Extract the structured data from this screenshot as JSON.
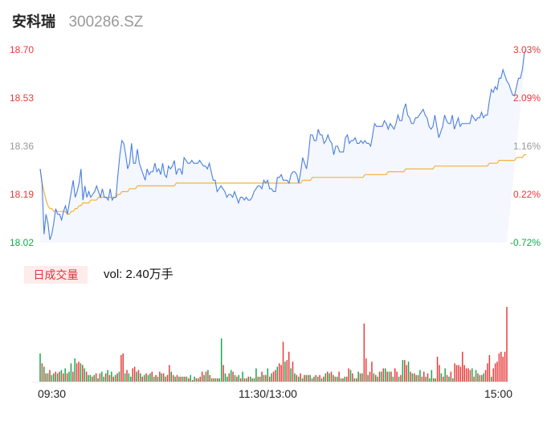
{
  "header": {
    "name": "安科瑞",
    "code": "300286.SZ"
  },
  "colors": {
    "up": "#e83a3a",
    "down": "#16a84a",
    "flat": "#999999",
    "price_line": "#4a7fe0",
    "avg_line": "#f2b33d",
    "fill": "#f4f7fd"
  },
  "chart_data": [
    {
      "type": "line",
      "title": "",
      "x_ticks": [
        "09:30",
        "11:30/13:00",
        "15:00"
      ],
      "y_left_ticks": [
        "18.70",
        "18.53",
        "18.36",
        "18.19",
        "18.02"
      ],
      "y_right_ticks": [
        "3.03%",
        "2.09%",
        "1.16%",
        "0.22%",
        "-0.72%"
      ],
      "ylim": [
        18.02,
        18.7
      ],
      "prev_close": 18.15,
      "n_points": 241,
      "series": [
        {
          "role": "price",
          "values": [
            18.28,
            18.23,
            18.05,
            18.12,
            18.09,
            18.03,
            18.05,
            18.09,
            18.14,
            18.12,
            18.12,
            18.1,
            18.13,
            18.15,
            18.12,
            18.16,
            18.2,
            18.24,
            18.18,
            18.2,
            18.23,
            18.28,
            18.17,
            18.22,
            18.18,
            18.2,
            18.18,
            18.19,
            18.2,
            18.22,
            18.2,
            18.18,
            18.21,
            18.18,
            18.18,
            18.17,
            18.21,
            18.17,
            18.18,
            18.18,
            18.26,
            18.33,
            18.38,
            18.37,
            18.33,
            18.28,
            18.3,
            18.37,
            18.3,
            18.3,
            18.35,
            18.3,
            18.28,
            18.26,
            18.24,
            18.28,
            18.26,
            18.27,
            18.27,
            18.3,
            18.27,
            18.28,
            18.26,
            18.3,
            18.26,
            18.25,
            18.29,
            18.28,
            18.29,
            18.31,
            18.26,
            18.28,
            18.28,
            18.26,
            18.32,
            18.31,
            18.3,
            18.3,
            18.31,
            18.3,
            18.3,
            18.3,
            18.31,
            18.3,
            18.29,
            18.29,
            18.28,
            18.3,
            18.27,
            18.24,
            18.24,
            18.2,
            18.21,
            18.22,
            18.21,
            18.2,
            18.18,
            18.19,
            18.19,
            18.18,
            18.2,
            18.18,
            18.16,
            18.18,
            18.18,
            18.17,
            18.18,
            18.17,
            18.17,
            18.18,
            18.2,
            18.21,
            18.22,
            18.22,
            18.21,
            18.24,
            18.23,
            18.24,
            18.21,
            18.21,
            18.2,
            18.2,
            18.25,
            18.25,
            18.26,
            18.24,
            18.24,
            18.24,
            18.23,
            18.26,
            18.27,
            18.27,
            18.26,
            18.23,
            18.27,
            18.32,
            18.3,
            18.28,
            18.33,
            18.4,
            18.4,
            18.38,
            18.38,
            18.42,
            18.4,
            18.4,
            18.37,
            18.38,
            18.4,
            18.38,
            18.37,
            18.33,
            18.36,
            18.36,
            18.34,
            18.34,
            18.34,
            18.39,
            18.4,
            18.37,
            18.38,
            18.38,
            18.39,
            18.37,
            18.37,
            18.38,
            18.37,
            18.38,
            18.37,
            18.37,
            18.36,
            18.4,
            18.44,
            18.43,
            18.43,
            18.43,
            18.43,
            18.45,
            18.44,
            18.42,
            18.44,
            18.43,
            18.42,
            18.44,
            18.47,
            18.45,
            18.45,
            18.49,
            18.51,
            18.47,
            18.46,
            18.44,
            18.44,
            18.46,
            18.46,
            18.47,
            18.48,
            18.49,
            18.47,
            18.46,
            18.43,
            18.42,
            18.43,
            18.47,
            18.43,
            18.39,
            18.41,
            18.43,
            18.47,
            18.45,
            18.44,
            18.44,
            18.47,
            18.42,
            18.44,
            18.46,
            18.43,
            18.44,
            18.44,
            18.44,
            18.44,
            18.44,
            18.47,
            18.46,
            18.45,
            18.46,
            18.46,
            18.48,
            18.46,
            18.47,
            18.47,
            18.52,
            18.56,
            18.55,
            18.57,
            18.56,
            18.6,
            18.6,
            18.63,
            18.61,
            18.59,
            18.58,
            18.56,
            18.54,
            18.54,
            18.57,
            18.6,
            18.6,
            18.63,
            18.69,
            18.7
          ]
        },
        {
          "role": "average",
          "values": [
            18.28,
            18.23,
            18.2,
            18.17,
            18.15,
            18.14,
            18.14,
            18.13,
            18.13,
            18.13,
            18.13,
            18.13,
            18.13,
            18.13,
            18.12,
            18.12,
            18.13,
            18.13,
            18.14,
            18.14,
            18.15,
            18.15,
            18.16,
            18.16,
            18.16,
            18.16,
            18.17,
            18.17,
            18.17,
            18.17,
            18.18,
            18.18,
            18.18,
            18.18,
            18.18,
            18.18,
            18.18,
            18.18,
            18.18,
            18.18,
            18.19,
            18.19,
            18.2,
            18.2,
            18.2,
            18.2,
            18.21,
            18.21,
            18.21,
            18.21,
            18.22,
            18.22,
            18.22,
            18.22,
            18.22,
            18.22,
            18.22,
            18.22,
            18.22,
            18.22,
            18.22,
            18.22,
            18.22,
            18.22,
            18.22,
            18.22,
            18.22,
            18.22,
            18.22,
            18.22,
            18.23,
            18.23,
            18.23,
            18.23,
            18.23,
            18.23,
            18.23,
            18.23,
            18.23,
            18.23,
            18.23,
            18.23,
            18.23,
            18.23,
            18.23,
            18.23,
            18.23,
            18.23,
            18.23,
            18.23,
            18.23,
            18.23,
            18.23,
            18.23,
            18.23,
            18.23,
            18.23,
            18.23,
            18.23,
            18.23,
            18.23,
            18.23,
            18.23,
            18.23,
            18.23,
            18.23,
            18.23,
            18.23,
            18.23,
            18.23,
            18.23,
            18.23,
            18.23,
            18.23,
            18.23,
            18.23,
            18.23,
            18.23,
            18.23,
            18.23,
            18.23,
            18.23,
            18.23,
            18.23,
            18.23,
            18.23,
            18.23,
            18.23,
            18.23,
            18.23,
            18.23,
            18.23,
            18.23,
            18.23,
            18.23,
            18.24,
            18.24,
            18.24,
            18.24,
            18.24,
            18.25,
            18.25,
            18.25,
            18.25,
            18.25,
            18.25,
            18.25,
            18.25,
            18.25,
            18.25,
            18.25,
            18.25,
            18.25,
            18.25,
            18.25,
            18.25,
            18.25,
            18.25,
            18.25,
            18.25,
            18.25,
            18.25,
            18.25,
            18.25,
            18.25,
            18.25,
            18.25,
            18.26,
            18.26,
            18.26,
            18.26,
            18.26,
            18.26,
            18.26,
            18.26,
            18.26,
            18.26,
            18.26,
            18.26,
            18.27,
            18.27,
            18.27,
            18.27,
            18.27,
            18.27,
            18.27,
            18.27,
            18.27,
            18.28,
            18.28,
            18.28,
            18.28,
            18.28,
            18.28,
            18.28,
            18.28,
            18.28,
            18.28,
            18.28,
            18.28,
            18.28,
            18.28,
            18.28,
            18.29,
            18.29,
            18.29,
            18.29,
            18.29,
            18.29,
            18.29,
            18.29,
            18.29,
            18.29,
            18.29,
            18.29,
            18.29,
            18.29,
            18.29,
            18.29,
            18.29,
            18.29,
            18.29,
            18.29,
            18.29,
            18.29,
            18.29,
            18.29,
            18.29,
            18.29,
            18.29,
            18.29,
            18.3,
            18.3,
            18.3,
            18.3,
            18.3,
            18.31,
            18.31,
            18.31,
            18.31,
            18.31,
            18.31,
            18.31,
            18.31,
            18.31,
            18.32,
            18.32,
            18.32,
            18.32,
            18.33,
            18.33
          ]
        }
      ]
    },
    {
      "type": "bar",
      "title": "",
      "tab_label": "日成交量",
      "volume_text": "vol: 2.40万手",
      "values": [
        34,
        22,
        18,
        10,
        10,
        14,
        8,
        10,
        12,
        10,
        12,
        14,
        10,
        16,
        10,
        12,
        22,
        12,
        28,
        22,
        24,
        22,
        20,
        16,
        12,
        8,
        8,
        6,
        8,
        10,
        4,
        10,
        12,
        6,
        10,
        14,
        8,
        12,
        6,
        8,
        10,
        12,
        32,
        34,
        10,
        14,
        10,
        6,
        16,
        18,
        12,
        14,
        10,
        6,
        8,
        10,
        8,
        10,
        12,
        6,
        8,
        6,
        12,
        10,
        10,
        6,
        8,
        20,
        12,
        8,
        6,
        8,
        6,
        6,
        6,
        6,
        6,
        4,
        8,
        2,
        6,
        4,
        4,
        6,
        12,
        8,
        12,
        14,
        8,
        4,
        4,
        4,
        4,
        4,
        52,
        20,
        10,
        6,
        10,
        14,
        12,
        8,
        6,
        8,
        4,
        12,
        4,
        4,
        6,
        6,
        4,
        4,
        16,
        6,
        6,
        12,
        8,
        8,
        16,
        6,
        10,
        12,
        14,
        18,
        22,
        20,
        48,
        24,
        26,
        36,
        16,
        24,
        10,
        8,
        6,
        10,
        4,
        8,
        8,
        8,
        8,
        4,
        6,
        8,
        6,
        8,
        4,
        6,
        10,
        12,
        10,
        12,
        8,
        6,
        6,
        12,
        4,
        4,
        6,
        6,
        16,
        14,
        10,
        4,
        4,
        12,
        10,
        10,
        70,
        28,
        8,
        12,
        24,
        10,
        8,
        6,
        12,
        12,
        16,
        16,
        12,
        12,
        12,
        6,
        16,
        12,
        6,
        8,
        26,
        26,
        20,
        24,
        12,
        10,
        10,
        8,
        8,
        14,
        6,
        12,
        6,
        10,
        4,
        14,
        4,
        4,
        30,
        20,
        10,
        6,
        16,
        8,
        6,
        12,
        4,
        22,
        20,
        20,
        18,
        36,
        20,
        16,
        16,
        14,
        16,
        6,
        14,
        10,
        8,
        8,
        10,
        14,
        22,
        32,
        6,
        16,
        22,
        24,
        34,
        36,
        30,
        36,
        90
      ],
      "directions": [
        "d",
        "u",
        "d",
        "u",
        "d",
        "u",
        "d",
        "d",
        "u",
        "d",
        "u",
        "d",
        "u",
        "d",
        "u",
        "d",
        "d",
        "u",
        "d",
        "u",
        "u",
        "d",
        "u",
        "d",
        "u",
        "d",
        "d",
        "u",
        "d",
        "u",
        "d",
        "u",
        "d",
        "d",
        "u",
        "d",
        "u",
        "d",
        "u",
        "d",
        "u",
        "d",
        "u",
        "u",
        "d",
        "u",
        "d",
        "d",
        "u",
        "u",
        "d",
        "u",
        "d",
        "u",
        "d",
        "u",
        "d",
        "d",
        "u",
        "d",
        "u",
        "d",
        "u",
        "d",
        "u",
        "d",
        "u",
        "u",
        "d",
        "u",
        "d",
        "u",
        "d",
        "u",
        "d",
        "u",
        "d",
        "u",
        "d",
        "u",
        "d",
        "u",
        "d",
        "u",
        "u",
        "d",
        "u",
        "d",
        "u",
        "d",
        "u",
        "d",
        "u",
        "d",
        "d",
        "u",
        "d",
        "d",
        "u",
        "d",
        "u",
        "d",
        "u",
        "d",
        "u",
        "d",
        "u",
        "d",
        "u",
        "d",
        "u",
        "d",
        "d",
        "u",
        "d",
        "u",
        "d",
        "u",
        "d",
        "u",
        "d",
        "u",
        "u",
        "d",
        "u",
        "u",
        "u",
        "d",
        "u",
        "u",
        "d",
        "u",
        "d",
        "u",
        "d",
        "u",
        "d",
        "u",
        "d",
        "u",
        "d",
        "u",
        "d",
        "u",
        "d",
        "u",
        "d",
        "u",
        "d",
        "u",
        "d",
        "u",
        "d",
        "u",
        "d",
        "u",
        "d",
        "u",
        "d",
        "u",
        "u",
        "d",
        "u",
        "d",
        "u",
        "d",
        "u",
        "d",
        "u",
        "u",
        "d",
        "u",
        "u",
        "d",
        "u",
        "d",
        "u",
        "d",
        "u",
        "d",
        "u",
        "d",
        "u",
        "d",
        "u",
        "u",
        "d",
        "u",
        "d",
        "u",
        "u",
        "d",
        "u",
        "d",
        "u",
        "d",
        "u",
        "d",
        "u",
        "u",
        "d",
        "u",
        "d",
        "d",
        "u",
        "d",
        "u",
        "u",
        "d",
        "u",
        "d",
        "u",
        "d",
        "u",
        "d",
        "u",
        "u",
        "u",
        "u",
        "u",
        "u",
        "u",
        "u",
        "u",
        "d",
        "u",
        "d",
        "u",
        "d",
        "u",
        "d",
        "u",
        "u",
        "u",
        "d",
        "u",
        "u",
        "u",
        "u",
        "u",
        "u",
        "u",
        "u"
      ]
    }
  ]
}
